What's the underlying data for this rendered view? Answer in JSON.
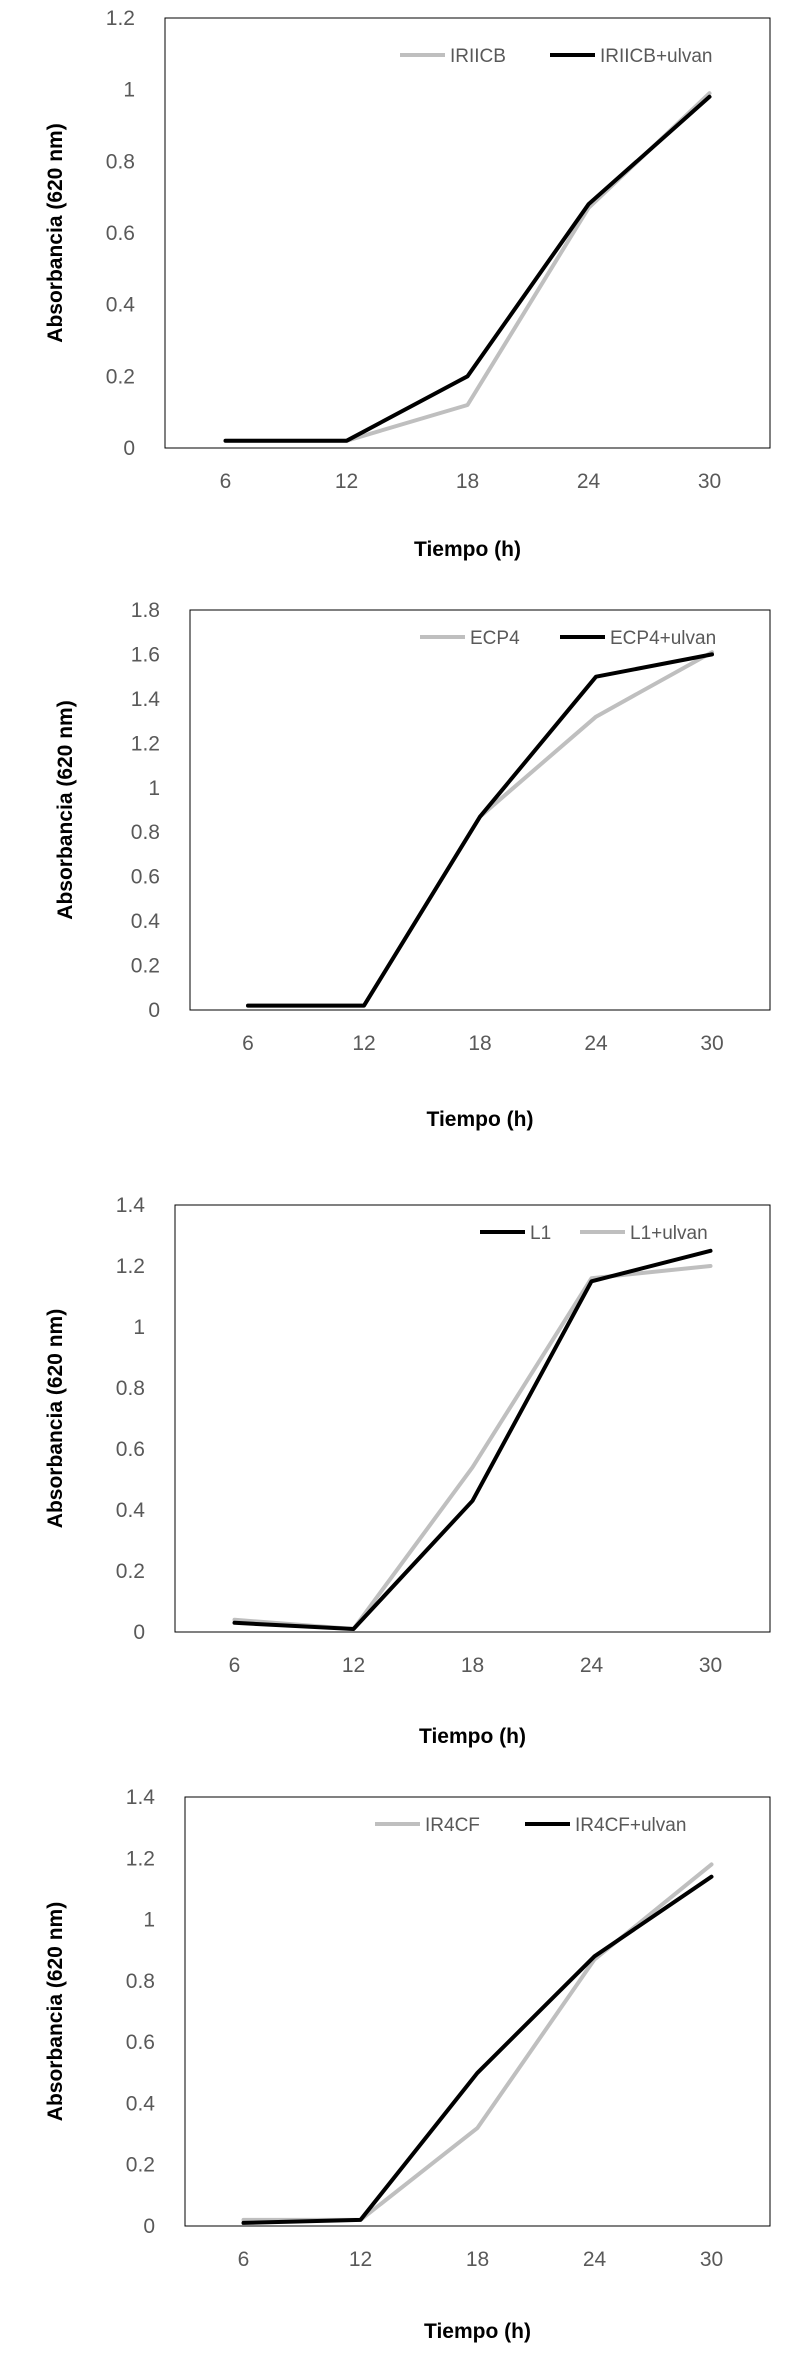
{
  "chart_data": [
    {
      "type": "line",
      "title": "",
      "xlabel": "Tiempo (h)",
      "ylabel": "Absorbancia  (620 nm)",
      "categories": [
        "6",
        "12",
        "18",
        "24",
        "30"
      ],
      "ylim": [
        0,
        1.2
      ],
      "yticks": [
        "0",
        "0.2",
        "0.4",
        "0.6",
        "0.8",
        "1",
        "1.2"
      ],
      "legend_position": "top-right",
      "series": [
        {
          "name": "IRIICB",
          "color": "#bfbfbf",
          "values": [
            0.02,
            0.02,
            0.12,
            0.67,
            0.99
          ]
        },
        {
          "name": "IRIICB+ulvan",
          "color": "#000000",
          "values": [
            0.02,
            0.02,
            0.2,
            0.68,
            0.98
          ]
        }
      ]
    },
    {
      "type": "line",
      "title": "",
      "xlabel": "Tiempo (h)",
      "ylabel": "Absorbancia  (620 nm)",
      "categories": [
        "6",
        "12",
        "18",
        "24",
        "30"
      ],
      "ylim": [
        0,
        1.8
      ],
      "yticks": [
        "0",
        "0.2",
        "0.4",
        "0.6",
        "0.8",
        "1",
        "1.2",
        "1.4",
        "1.6",
        "1.8"
      ],
      "legend_position": "top-right",
      "series": [
        {
          "name": "ECP4",
          "color": "#bfbfbf",
          "values": [
            0.02,
            0.02,
            0.87,
            1.32,
            1.61
          ]
        },
        {
          "name": "ECP4+ulvan",
          "color": "#000000",
          "values": [
            0.02,
            0.02,
            0.87,
            1.5,
            1.6
          ]
        }
      ]
    },
    {
      "type": "line",
      "title": "",
      "xlabel": "Tiempo (h)",
      "ylabel": "Absorbancia  (620 nm)",
      "categories": [
        "6",
        "12",
        "18",
        "24",
        "30"
      ],
      "ylim": [
        0,
        1.4
      ],
      "yticks": [
        "0",
        "0.2",
        "0.4",
        "0.6",
        "0.8",
        "1",
        "1.2",
        "1.4"
      ],
      "legend_position": "top-right",
      "series": [
        {
          "name": "L1",
          "color": "#000000",
          "values": [
            0.03,
            0.01,
            0.43,
            1.15,
            1.25
          ]
        },
        {
          "name": "L1+ulvan",
          "color": "#bfbfbf",
          "values": [
            0.04,
            0.01,
            0.54,
            1.16,
            1.2
          ]
        }
      ]
    },
    {
      "type": "line",
      "title": "",
      "xlabel": "Tiempo (h)",
      "ylabel": "Absorbancia  (620 nm)",
      "categories": [
        "6",
        "12",
        "18",
        "24",
        "30"
      ],
      "ylim": [
        0,
        1.4
      ],
      "yticks": [
        "0",
        "0.2",
        "0.4",
        "0.6",
        "0.8",
        "1",
        "1.2",
        "1.4"
      ],
      "legend_position": "top-right",
      "series": [
        {
          "name": "IR4CF",
          "color": "#bfbfbf",
          "values": [
            0.02,
            0.02,
            0.32,
            0.87,
            1.18
          ]
        },
        {
          "name": "IR4CF+ulvan",
          "color": "#000000",
          "values": [
            0.01,
            0.02,
            0.5,
            0.88,
            1.14
          ]
        }
      ]
    }
  ]
}
